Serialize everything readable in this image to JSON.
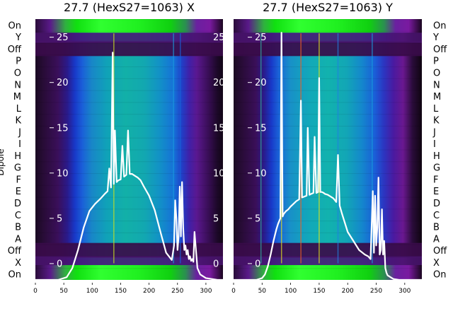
{
  "chart_data": [
    {
      "type": "heatmap",
      "title": "27.7 (HexS27=1063) X",
      "ylabel": "Dipole",
      "row_labels_top_to_bottom": [
        "On",
        "Y",
        "Off",
        "P",
        "O",
        "N",
        "M",
        "L",
        "K",
        "J",
        "I",
        "H",
        "G",
        "F",
        "E",
        "D",
        "C",
        "B",
        "A",
        "Off",
        "X",
        "On"
      ],
      "x_ticks": [
        0,
        50,
        100,
        150,
        200,
        250,
        300
      ],
      "xlim": [
        0,
        330
      ],
      "overlay_ticks": [
        25,
        20,
        15,
        10,
        5,
        0
      ],
      "overlay_ylim": [
        -1.8,
        27
      ],
      "overlay_line": {
        "color": "#ffffff",
        "x": [
          0,
          20,
          40,
          55,
          65,
          75,
          85,
          95,
          105,
          115,
          122,
          127,
          130,
          133,
          136,
          138,
          140,
          143,
          146,
          150,
          153,
          156,
          160,
          163,
          166,
          170,
          175,
          180,
          185,
          190,
          200,
          210,
          220,
          230,
          240,
          244,
          246,
          248,
          250,
          252,
          254,
          256,
          258,
          260,
          262,
          264,
          266,
          268,
          270,
          272,
          274,
          276,
          278,
          280,
          285,
          290,
          300,
          320,
          330
        ],
        "y": [
          -1.8,
          -1.8,
          -1.8,
          -1.5,
          -0.5,
          1.5,
          4,
          5.8,
          6.6,
          7.2,
          7.7,
          8.0,
          10.5,
          8.4,
          23.3,
          8.8,
          14.7,
          9.0,
          9.2,
          9.3,
          13.0,
          9.6,
          9.8,
          14.7,
          9.9,
          9.9,
          9.7,
          9.5,
          9.2,
          8.6,
          7.5,
          5.9,
          3.5,
          1.2,
          0.4,
          2,
          7,
          5,
          1.5,
          3,
          8.5,
          3,
          9,
          4,
          1.5,
          2,
          1,
          1.5,
          0.5,
          0.8,
          0.3,
          0.5,
          0.2,
          3.5,
          -0.5,
          -1.2,
          -1.6,
          -1.8,
          -1.8
        ]
      }
    },
    {
      "type": "heatmap",
      "title": "27.7 (HexS27=1063) Y",
      "row_labels_top_to_bottom": [
        "On",
        "Y",
        "Off",
        "P",
        "O",
        "N",
        "M",
        "L",
        "K",
        "J",
        "I",
        "H",
        "G",
        "F",
        "E",
        "D",
        "C",
        "B",
        "A",
        "Off",
        "X",
        "On"
      ],
      "x_ticks": [
        0,
        50,
        100,
        150,
        200,
        250,
        300
      ],
      "xlim": [
        0,
        330
      ],
      "overlay_ticks": [
        25,
        20,
        15,
        10,
        5,
        0
      ],
      "overlay_ylim": [
        -1.8,
        27
      ],
      "overlay_line": {
        "color": "#ffffff",
        "x": [
          0,
          20,
          40,
          50,
          55,
          60,
          65,
          70,
          75,
          78,
          80,
          82,
          84,
          86,
          88,
          92,
          96,
          100,
          105,
          110,
          115,
          118,
          120,
          124,
          128,
          130,
          133,
          136,
          140,
          142,
          145,
          148,
          150,
          152,
          155,
          158,
          160,
          165,
          170,
          175,
          180,
          183,
          186,
          190,
          200,
          210,
          220,
          230,
          236,
          240,
          244,
          246,
          248,
          250,
          252,
          254,
          256,
          258,
          260,
          262,
          264,
          266,
          268,
          270,
          275,
          280,
          290,
          300,
          320,
          330
        ],
        "y": [
          -1.8,
          -1.8,
          -1.8,
          -1.6,
          -1.2,
          -0.3,
          1,
          2.5,
          3.8,
          4.4,
          4.7,
          5.0,
          25.5,
          5.2,
          5.5,
          5.8,
          6.0,
          6.3,
          6.6,
          6.9,
          7.1,
          18,
          7.3,
          7.4,
          7.5,
          15,
          7.6,
          7.7,
          7.8,
          14,
          7.8,
          7.9,
          20.5,
          7.9,
          7.9,
          7.8,
          7.7,
          7.6,
          7.4,
          7.2,
          6.8,
          12,
          6.4,
          5.5,
          3.5,
          2.5,
          1.5,
          1.0,
          0.8,
          0.5,
          8,
          1.2,
          7.5,
          2,
          4,
          9.5,
          1,
          1.5,
          6,
          1,
          2.5,
          -0.5,
          -1,
          -1.3,
          -1.5,
          -1.7,
          -1.8,
          -1.8,
          -1.8,
          -1.8
        ]
      }
    }
  ]
}
